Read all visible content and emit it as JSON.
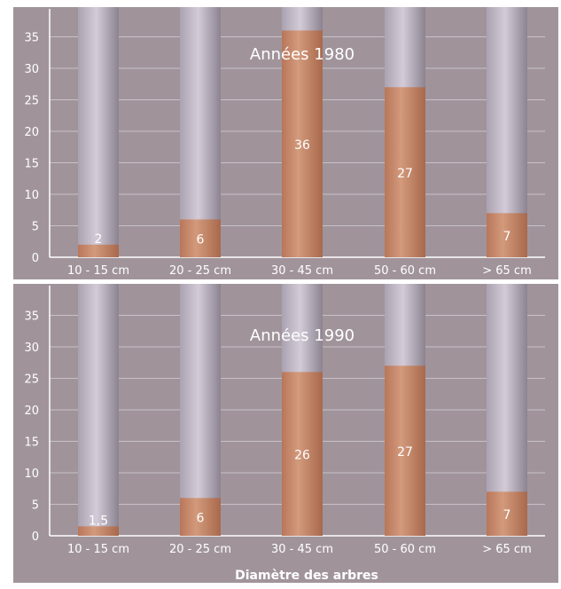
{
  "x_axis_label": "Diamètre des arbres",
  "colors": {
    "panel_background": "#a0949a",
    "bar_fill": "#c08060",
    "column_track": "#bdb3bf",
    "value_text": "#ffffff",
    "axis_text": "#ffffff"
  },
  "chart_data": [
    {
      "type": "bar",
      "title": "Années 1980",
      "categories": [
        "10 - 15 cm",
        "20 - 25 cm",
        "30 - 45 cm",
        "50 - 60 cm",
        "> 65 cm"
      ],
      "values": [
        2,
        6,
        36,
        27,
        7
      ],
      "value_labels": [
        "2",
        "6",
        "36",
        "27",
        "7"
      ],
      "ylim": [
        0,
        39
      ],
      "yticks": [
        0,
        5,
        10,
        15,
        20,
        25,
        30,
        35
      ],
      "grid": true
    },
    {
      "type": "bar",
      "title": "Années 1990",
      "categories": [
        "10 - 15 cm",
        "20 - 25 cm",
        "30 - 45 cm",
        "50 - 60 cm",
        "> 65 cm"
      ],
      "values": [
        1.5,
        6,
        26,
        27,
        7
      ],
      "value_labels": [
        "1,5",
        "6",
        "26",
        "27",
        "7"
      ],
      "ylim": [
        0,
        39
      ],
      "yticks": [
        0,
        5,
        10,
        15,
        20,
        25,
        30,
        35
      ],
      "grid": true
    }
  ]
}
